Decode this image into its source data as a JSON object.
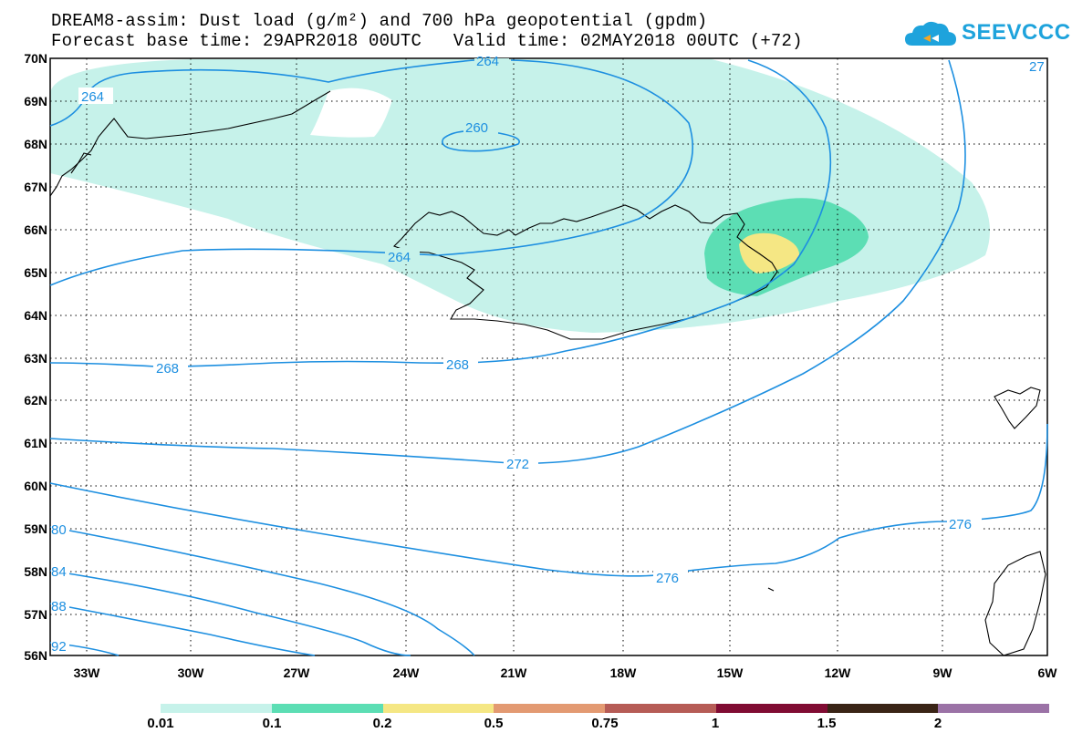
{
  "title_line1": "DREAM8-assim: Dust load (g/m²) and 700 hPa geopotential (gpdm)",
  "title_line2": "Forecast base time: 29APR2018 00UTC   Valid time: 02MAY2018 00UTC (+72)",
  "logo_text": "SEEVCCC",
  "lat_labels": [
    "70N",
    "69N",
    "68N",
    "67N",
    "66N",
    "65N",
    "64N",
    "63N",
    "62N",
    "61N",
    "60N",
    "59N",
    "58N",
    "57N",
    "56N"
  ],
  "lon_labels": [
    "33W",
    "30W",
    "27W",
    "24W",
    "21W",
    "18W",
    "15W",
    "12W",
    "9W",
    "6W"
  ],
  "contour_labels": [
    "264",
    "264",
    "260",
    "264",
    "268",
    "268",
    "272",
    "276",
    "276",
    "80",
    "84",
    "88",
    "92",
    "27"
  ],
  "colorbar": {
    "colors": [
      "#c6f2ea",
      "#5cdeb4",
      "#f5e784",
      "#e39a72",
      "#b65c56",
      "#800c33",
      "#3a2416",
      "#9b72a6"
    ],
    "ticks": [
      "0.01",
      "0.1",
      "0.2",
      "0.5",
      "0.75",
      "1",
      "1.5",
      "2"
    ]
  },
  "colors": {
    "contour": "#1d8fe0",
    "dust_low": "#c6f2ea",
    "dust_mid": "#5cdeb4",
    "dust_high": "#f5e784"
  }
}
